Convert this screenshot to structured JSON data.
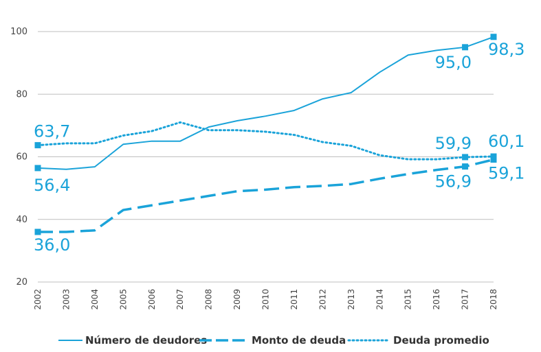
{
  "chart_data": {
    "type": "line",
    "x": [
      "2002",
      "2003",
      "2004",
      "2005",
      "2006",
      "2007",
      "2008",
      "2009",
      "2010",
      "2011",
      "2012",
      "2013",
      "2014",
      "2015",
      "2016",
      "2017",
      "2018"
    ],
    "ylim": [
      20,
      100
    ],
    "yticks": [
      "20",
      "40",
      "60",
      "80",
      "100"
    ],
    "grid": "horizontal",
    "legend_position": "bottom",
    "line_color": "#1aa3d9",
    "series": [
      {
        "name": "Número de deudores",
        "style": "solid",
        "values": [
          56.4,
          56.0,
          56.8,
          64.0,
          65.0,
          65.0,
          69.5,
          71.5,
          73.0,
          74.8,
          78.5,
          80.5,
          87.0,
          92.5,
          94.0,
          95.0,
          98.3
        ]
      },
      {
        "name": "Monto de deuda",
        "style": "dashed",
        "values": [
          36.0,
          36.0,
          36.5,
          43.0,
          44.5,
          46.0,
          47.5,
          49.0,
          49.5,
          50.3,
          50.7,
          51.3,
          53.0,
          54.5,
          55.8,
          56.9,
          59.1
        ]
      },
      {
        "name": "Deuda promedio",
        "style": "dotted",
        "values": [
          63.7,
          64.3,
          64.3,
          66.8,
          68.2,
          71.0,
          68.5,
          68.5,
          68.0,
          67.0,
          64.7,
          63.5,
          60.5,
          59.2,
          59.2,
          59.9,
          60.1
        ]
      }
    ],
    "annotations": [
      {
        "series": 0,
        "index": 0,
        "text": "56,4"
      },
      {
        "series": 0,
        "index": 15,
        "text": "95,0"
      },
      {
        "series": 0,
        "index": 16,
        "text": "98,3"
      },
      {
        "series": 1,
        "index": 0,
        "text": "36,0"
      },
      {
        "series": 1,
        "index": 15,
        "text": "56,9"
      },
      {
        "series": 1,
        "index": 16,
        "text": "59,1"
      },
      {
        "series": 2,
        "index": 0,
        "text": "63,7"
      },
      {
        "series": 2,
        "index": 15,
        "text": "59,9"
      },
      {
        "series": 2,
        "index": 16,
        "text": "60,1"
      }
    ]
  }
}
